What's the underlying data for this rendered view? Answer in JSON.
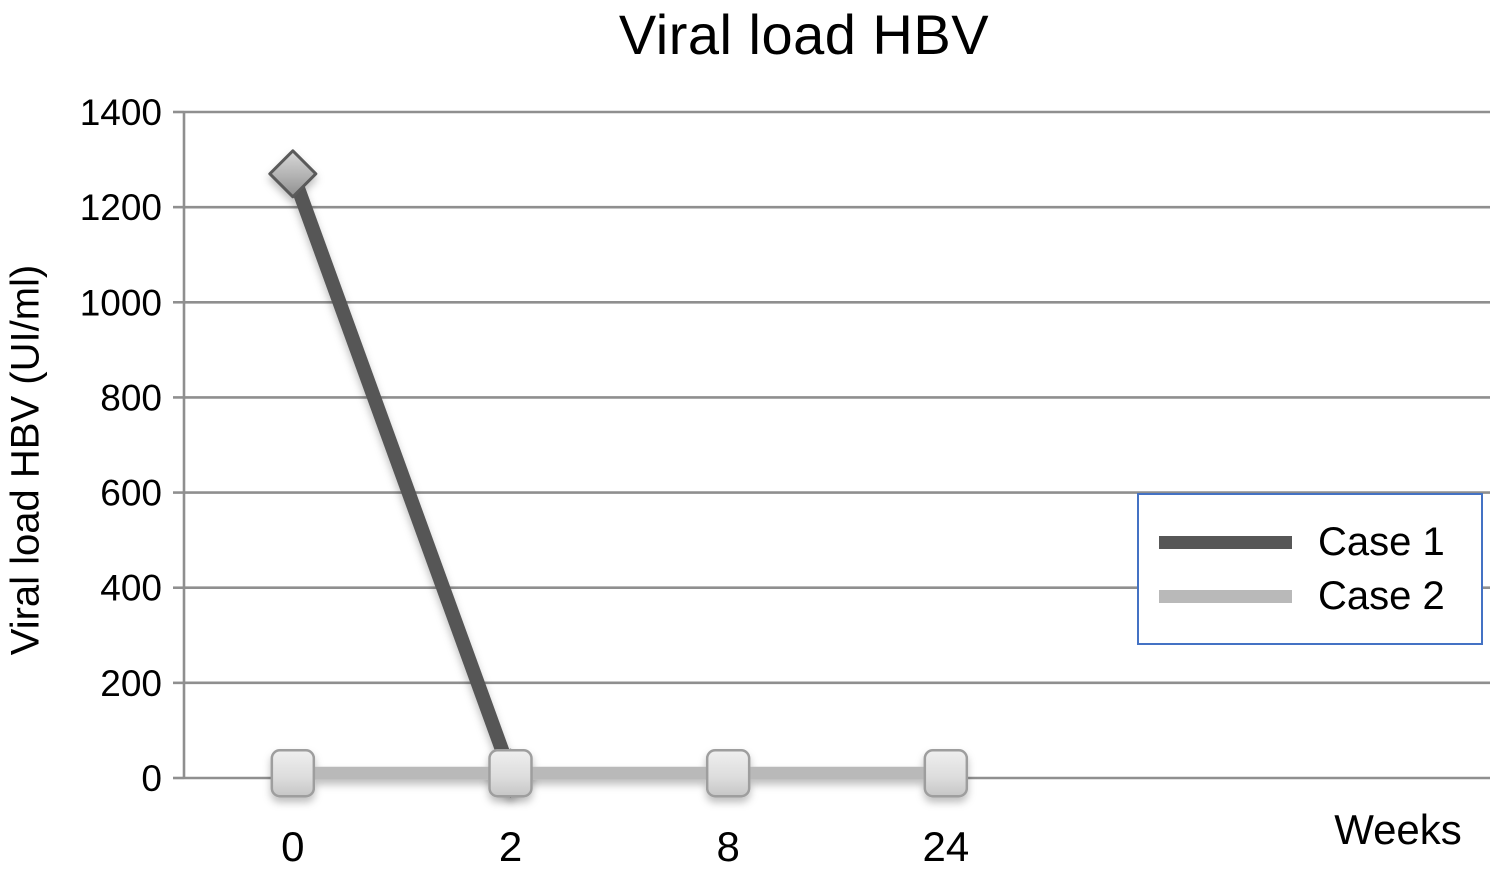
{
  "chart_data": {
    "type": "line",
    "title": "Viral load HBV",
    "xlabel": "Weeks",
    "ylabel": "Viral load HBV (UI/ml)",
    "categories": [
      "0",
      "2",
      "8",
      "24"
    ],
    "series": [
      {
        "name": "Case 1",
        "color": "#575757",
        "marker": "diamond",
        "values": [
          1270,
          10,
          null,
          null
        ]
      },
      {
        "name": "Case 2",
        "color": "#b9b9b9",
        "marker": "square",
        "values": [
          10,
          10,
          10,
          10
        ]
      }
    ],
    "ylim": [
      0,
      1400
    ],
    "ytick_step": 200,
    "yticks": [
      0,
      200,
      400,
      600,
      800,
      1000,
      1200,
      1400
    ],
    "grid": true,
    "gridline_color": "#8f8f8f",
    "axis_color": "#8f8f8f",
    "text_color": "#000000",
    "legend_position": "middle-right",
    "legend_border_color": "#4472c4"
  }
}
